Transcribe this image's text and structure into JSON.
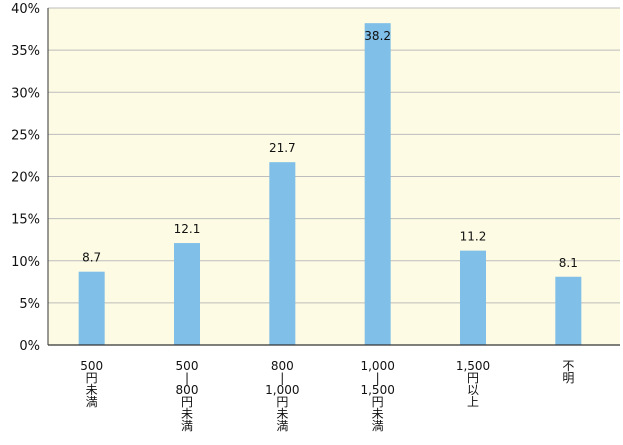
{
  "chart_data": {
    "type": "bar",
    "categories": [
      [
        "500",
        "円",
        "未",
        "満"
      ],
      [
        "500",
        "|",
        "800",
        "円",
        "未",
        "満"
      ],
      [
        "800",
        "|",
        "1,000",
        "円",
        "未",
        "満"
      ],
      [
        "1,000",
        "|",
        "1,500",
        "円",
        "未",
        "満"
      ],
      [
        "1,500",
        "円",
        "以",
        "上"
      ],
      [
        "不",
        "明"
      ]
    ],
    "values": [
      8.7,
      12.1,
      21.7,
      38.2,
      11.2,
      8.1
    ],
    "data_labels": [
      "8.7",
      "12.1",
      "21.7",
      "38.2",
      "11.2",
      "8.1"
    ],
    "ylim": [
      0,
      40
    ],
    "yticks": [
      0,
      5,
      10,
      15,
      20,
      25,
      30,
      35,
      40
    ],
    "ytick_labels": [
      "0%",
      "5%",
      "10%",
      "15%",
      "20%",
      "25%",
      "30%",
      "35%",
      "40%"
    ],
    "grid": true,
    "colors": {
      "bar": "#7fbfe8",
      "plot_background": "#fdfbe3",
      "grid": "#bdbdbd",
      "axis": "#333333"
    }
  }
}
